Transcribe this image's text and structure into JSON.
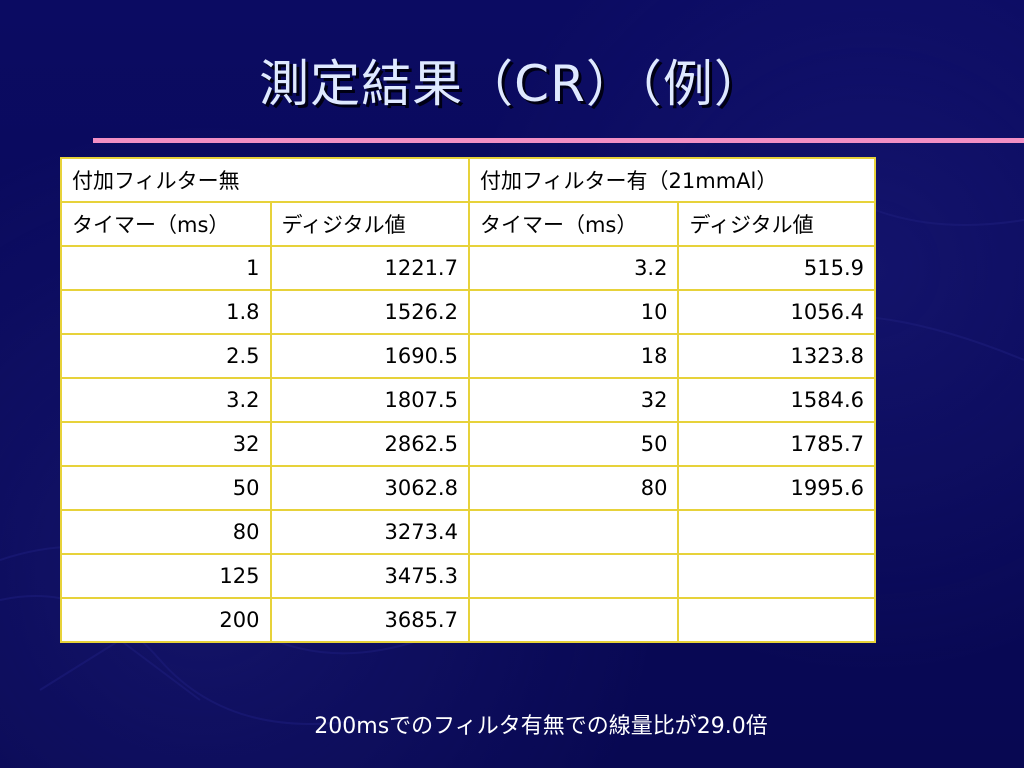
{
  "slide": {
    "title": "測定結果（CR）（例）",
    "footer": "200msでのフィルタ有無での線量比が29.0倍"
  },
  "table": {
    "group_headers": [
      "付加フィルター無",
      "付加フィルター有（21mmAl）"
    ],
    "column_headers": [
      "タイマー（ms）",
      "ディジタル値",
      "タイマー（ms）",
      "ディジタル値"
    ],
    "rows": [
      [
        "1",
        "1221.7",
        "3.2",
        "515.9"
      ],
      [
        "1.8",
        "1526.2",
        "10",
        "1056.4"
      ],
      [
        "2.5",
        "1690.5",
        "18",
        "1323.8"
      ],
      [
        "3.2",
        "1807.5",
        "32",
        "1584.6"
      ],
      [
        "32",
        "2862.5",
        "50",
        "1785.7"
      ],
      [
        "50",
        "3062.8",
        "80",
        "1995.6"
      ],
      [
        "80",
        "3273.4",
        "",
        ""
      ],
      [
        "125",
        "3475.3",
        "",
        ""
      ],
      [
        "200",
        "3685.7",
        "",
        ""
      ]
    ]
  },
  "colors": {
    "background": "#0a0a5a",
    "title_text": "#dfe9ff",
    "rule": "#f28fc4",
    "table_border": "#e7d23a"
  }
}
